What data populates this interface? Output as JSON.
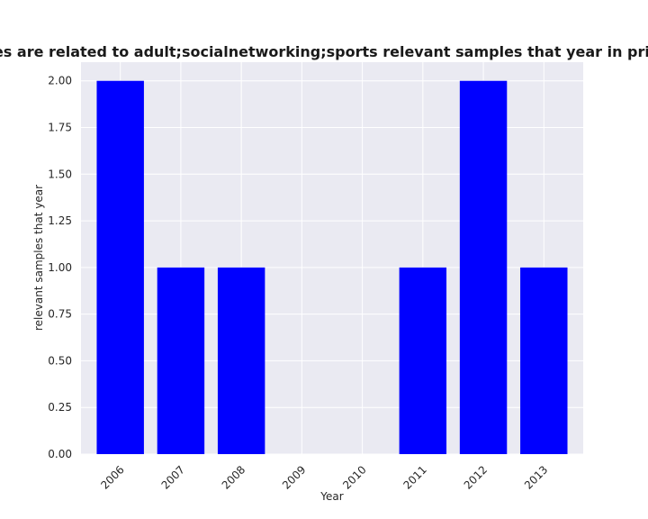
{
  "chart_data": {
    "type": "bar",
    "title": "Categories are related to adult;socialnetworking;sports relevant samples that year in privacy policy",
    "xlabel": "Year",
    "ylabel": "relevant samples that year",
    "categories": [
      "2006",
      "2007",
      "2008",
      "2009",
      "2010",
      "2011",
      "2012",
      "2013"
    ],
    "values": [
      2,
      1,
      1,
      0,
      0,
      1,
      2,
      1
    ],
    "ylim": [
      0,
      2.1
    ],
    "yticks": [
      "0.00",
      "0.25",
      "0.50",
      "0.75",
      "1.00",
      "1.25",
      "1.50",
      "1.75",
      "2.00"
    ],
    "grid": true,
    "bar_color": "#0000ff",
    "plot_background": "#eaeaf2"
  }
}
